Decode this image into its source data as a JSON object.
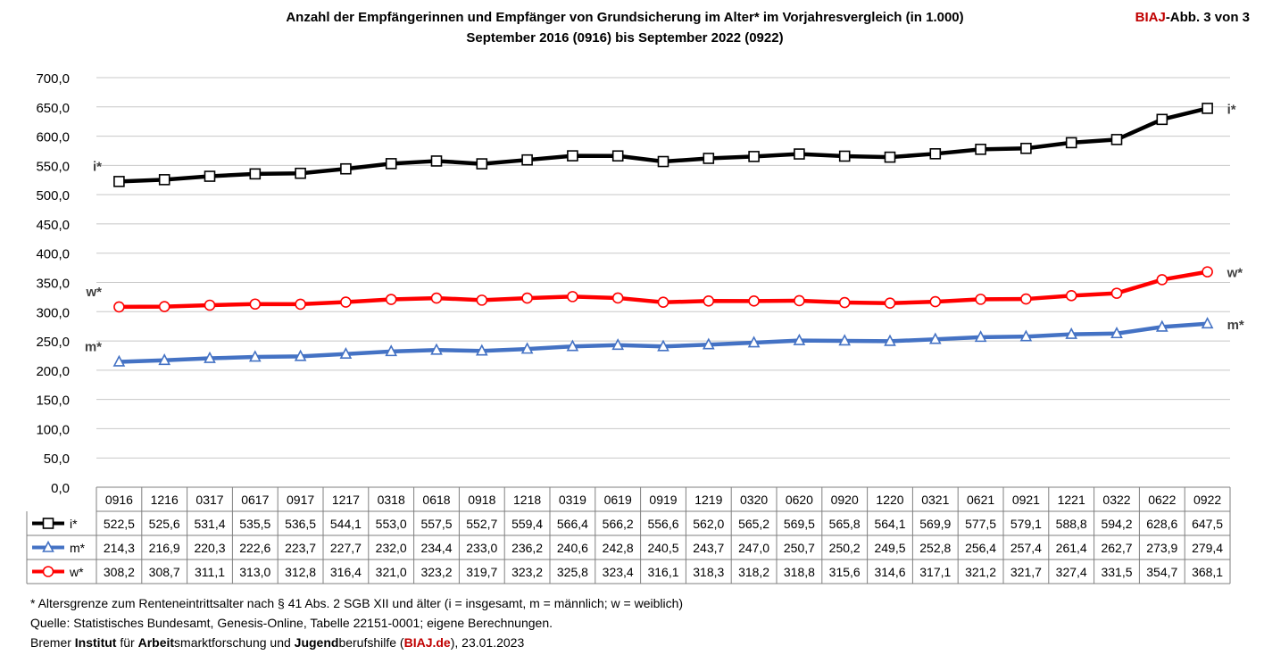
{
  "header": {
    "title_line1": "Anzahl der Empfängerinnen und Empfänger von Grundsicherung im Alter* im Vorjahresvergleich (in 1.000)",
    "title_line2": "September 2016 (0916) bis September 2022 (0922)",
    "badge_brand": "BIAJ",
    "badge_rest": "-Abb. 3 von 3"
  },
  "chart_data": {
    "type": "line",
    "categories": [
      "0916",
      "1216",
      "0317",
      "0617",
      "0917",
      "1217",
      "0318",
      "0618",
      "0918",
      "1218",
      "0319",
      "0619",
      "0919",
      "1219",
      "0320",
      "0620",
      "0920",
      "1220",
      "0321",
      "0621",
      "0921",
      "1221",
      "0322",
      "0622",
      "0922"
    ],
    "ylim": [
      0,
      700
    ],
    "yticks": [
      "0,0",
      "50,0",
      "100,0",
      "150,0",
      "200,0",
      "250,0",
      "300,0",
      "350,0",
      "400,0",
      "450,0",
      "500,0",
      "550,0",
      "600,0",
      "650,0",
      "700,0"
    ],
    "grid": true,
    "series": [
      {
        "name": "i*",
        "color": "#000000",
        "marker": "square",
        "values": [
          522.5,
          525.6,
          531.4,
          535.5,
          536.5,
          544.1,
          553.0,
          557.5,
          552.7,
          559.4,
          566.4,
          566.2,
          556.6,
          562.0,
          565.2,
          569.5,
          565.8,
          564.1,
          569.9,
          577.5,
          579.1,
          588.8,
          594.2,
          628.6,
          647.5
        ],
        "labels": [
          "522,5",
          "525,6",
          "531,4",
          "535,5",
          "536,5",
          "544,1",
          "553,0",
          "557,5",
          "552,7",
          "559,4",
          "566,4",
          "566,2",
          "556,6",
          "562,0",
          "565,2",
          "569,5",
          "565,8",
          "564,1",
          "569,9",
          "577,5",
          "579,1",
          "588,8",
          "594,2",
          "628,6",
          "647,5"
        ]
      },
      {
        "name": "m*",
        "color": "#4472c4",
        "marker": "triangle",
        "values": [
          214.3,
          216.9,
          220.3,
          222.6,
          223.7,
          227.7,
          232.0,
          234.4,
          233.0,
          236.2,
          240.6,
          242.8,
          240.5,
          243.7,
          247.0,
          250.7,
          250.2,
          249.5,
          252.8,
          256.4,
          257.4,
          261.4,
          262.7,
          273.9,
          279.4
        ],
        "labels": [
          "214,3",
          "216,9",
          "220,3",
          "222,6",
          "223,7",
          "227,7",
          "232,0",
          "234,4",
          "233,0",
          "236,2",
          "240,6",
          "242,8",
          "240,5",
          "243,7",
          "247,0",
          "250,7",
          "250,2",
          "249,5",
          "252,8",
          "256,4",
          "257,4",
          "261,4",
          "262,7",
          "273,9",
          "279,4"
        ]
      },
      {
        "name": "w*",
        "color": "#ff0000",
        "marker": "circle",
        "values": [
          308.2,
          308.7,
          311.1,
          313.0,
          312.8,
          316.4,
          321.0,
          323.2,
          319.7,
          323.2,
          325.8,
          323.4,
          316.1,
          318.3,
          318.2,
          318.8,
          315.6,
          314.6,
          317.1,
          321.2,
          321.7,
          327.4,
          331.5,
          354.7,
          368.1
        ],
        "labels": [
          "308,2",
          "308,7",
          "311,1",
          "313,0",
          "312,8",
          "316,4",
          "321,0",
          "323,2",
          "319,7",
          "323,2",
          "325,8",
          "323,4",
          "316,1",
          "318,3",
          "318,2",
          "318,8",
          "315,6",
          "314,6",
          "317,1",
          "321,2",
          "321,7",
          "327,4",
          "331,5",
          "354,7",
          "368,1"
        ]
      }
    ]
  },
  "footer": {
    "note": "* Altersgrenze zum Renteneintrittsalter nach § 41 Abs. 2 SGB XII und älter (i = insgesamt, m = männlich; w = weiblich)",
    "source": "Quelle: Statistisches Bundesamt, Genesis-Online, Tabelle 22151-0001; eigene Berechnungen.",
    "credit_1": "Bremer ",
    "credit_2": "Institut",
    "credit_3": " für ",
    "credit_4": "Arbeit",
    "credit_5": "smarktforschung und ",
    "credit_6": "Jugend",
    "credit_7": "berufshilfe (",
    "credit_8": "BIAJ.de",
    "credit_9": "), 23.01.2023"
  }
}
